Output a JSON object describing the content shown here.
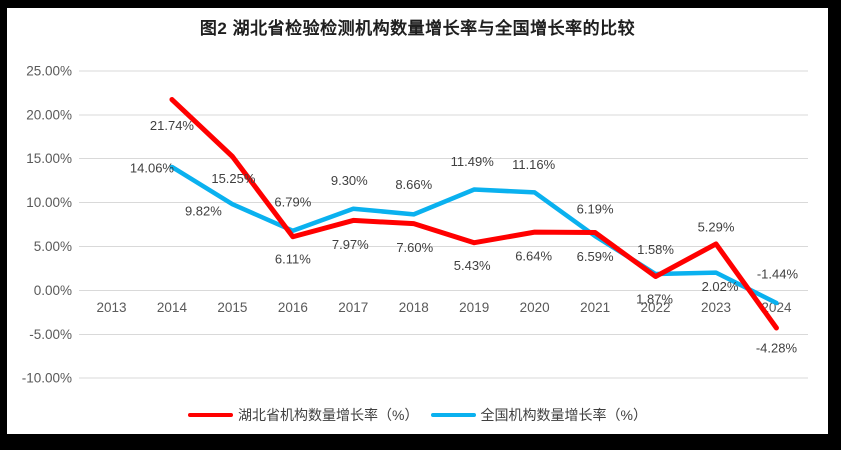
{
  "title": "图2  湖北省检验检测机构数量增长率与全国增长率的比较",
  "colors": {
    "hubei_line": "#FF0000",
    "national_line": "#0AB1EF",
    "grid": "#D9D9D9",
    "axis_text": "#595959",
    "label_text": "#404040",
    "title_text": "#1F1F1F",
    "chart_background": "#FFFFFF",
    "frame_border": "#000000"
  },
  "chart_data": {
    "type": "line",
    "title": "图2  湖北省检验检测机构数量增长率与全国增长率的比较",
    "categories": [
      "2013",
      "2014",
      "2015",
      "2016",
      "2017",
      "2018",
      "2019",
      "2020",
      "2021",
      "2022",
      "2023",
      "2024"
    ],
    "series": [
      {
        "name": "湖北省机构数量增长率（%）",
        "color_key": "hubei_line",
        "values": [
          null,
          21.74,
          15.25,
          6.11,
          7.97,
          7.6,
          5.43,
          6.64,
          6.59,
          1.58,
          5.29,
          -4.28
        ],
        "labels": [
          null,
          "21.74%",
          "15.25%",
          "6.11%",
          "7.97%",
          "7.60%",
          "5.43%",
          "6.64%",
          "6.59%",
          "1.58%",
          "5.29%",
          "-4.28%"
        ],
        "label_offsets": [
          null,
          [
            0,
            26
          ],
          [
            1,
            22
          ],
          [
            0,
            22
          ],
          [
            -3,
            24
          ],
          [
            1,
            24
          ],
          [
            -2,
            23
          ],
          [
            -1,
            24
          ],
          [
            0,
            24
          ],
          [
            0,
            -27
          ],
          [
            0,
            -17
          ],
          [
            0,
            20
          ]
        ]
      },
      {
        "name": "全国机构数量增长率（%）",
        "color_key": "national_line",
        "values": [
          null,
          14.06,
          9.82,
          6.79,
          9.3,
          8.66,
          11.49,
          11.16,
          6.19,
          1.87,
          2.02,
          -1.44
        ],
        "labels": [
          null,
          "14.06%",
          "9.82%",
          "6.79%",
          "9.30%",
          "8.66%",
          "11.49%",
          "11.16%",
          "6.19%",
          "1.87%",
          "2.02%",
          "-1.44%"
        ],
        "label_offsets": [
          null,
          [
            -20,
            1
          ],
          [
            -29,
            7
          ],
          [
            0,
            -29
          ],
          [
            -4,
            -28
          ],
          [
            0,
            -30
          ],
          [
            -2,
            -28
          ],
          [
            -1,
            -28
          ],
          [
            0,
            -27
          ],
          [
            -1,
            25
          ],
          [
            4,
            14
          ],
          [
            1,
            -29
          ]
        ]
      }
    ],
    "y_axis": {
      "min": -10,
      "max": 25,
      "step": 5,
      "tick_labels": [
        "25.00%",
        "20.00%",
        "15.00%",
        "10.00%",
        "5.00%",
        "0.00%",
        "-5.00%",
        "-10.00%"
      ]
    },
    "xlabel": "",
    "ylabel": "",
    "grid": true,
    "legend_position": "bottom"
  }
}
